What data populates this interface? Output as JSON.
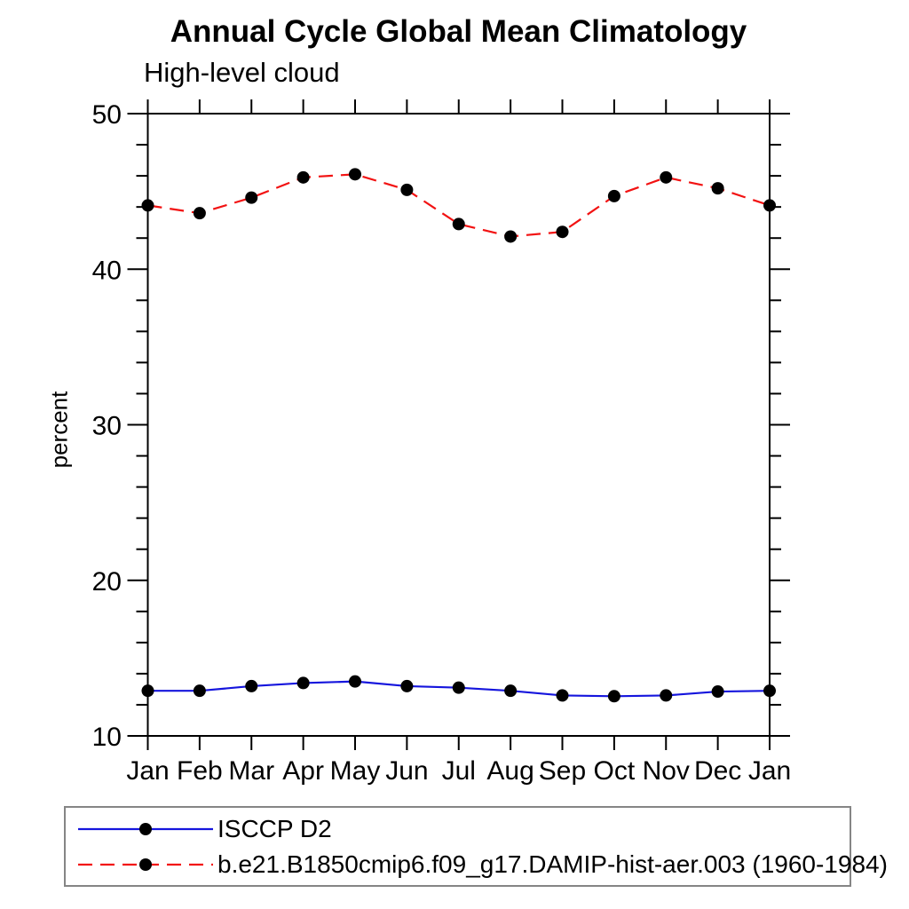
{
  "page": {
    "background": "#ffffff"
  },
  "chart_data": {
    "type": "line",
    "title": "Annual Cycle Global Mean Climatology",
    "subtitle": "High-level cloud",
    "xlabel": "",
    "ylabel": "percent",
    "categories": [
      "Jan",
      "Feb",
      "Mar",
      "Apr",
      "May",
      "Jun",
      "Jul",
      "Aug",
      "Sep",
      "Oct",
      "Nov",
      "Dec",
      "Jan"
    ],
    "series": [
      {
        "name": "ISCCP D2",
        "color": "#1515dd",
        "line_style": "solid",
        "marker": "filled-circle",
        "values": [
          12.9,
          12.9,
          13.2,
          13.4,
          13.5,
          13.2,
          13.1,
          12.9,
          12.6,
          12.55,
          12.6,
          12.85,
          12.9
        ]
      },
      {
        "name": "b.e21.B1850cmip6.f09_g17.DAMIP-hist-aer.003 (1960-1984)",
        "color": "#f21212",
        "line_style": "dashed",
        "marker": "filled-circle",
        "values": [
          44.1,
          43.6,
          44.6,
          45.9,
          46.1,
          45.1,
          42.9,
          42.1,
          42.4,
          44.7,
          45.9,
          45.2,
          44.1
        ]
      }
    ],
    "ylim": [
      10,
      50
    ],
    "yticks": [
      10,
      20,
      30,
      40,
      50
    ],
    "minor_tick_step": 2,
    "grid": false,
    "legend_position": "bottom-left",
    "marker_color": "#000000",
    "axis_color": "#000000",
    "legend_border_color": "#858585"
  }
}
